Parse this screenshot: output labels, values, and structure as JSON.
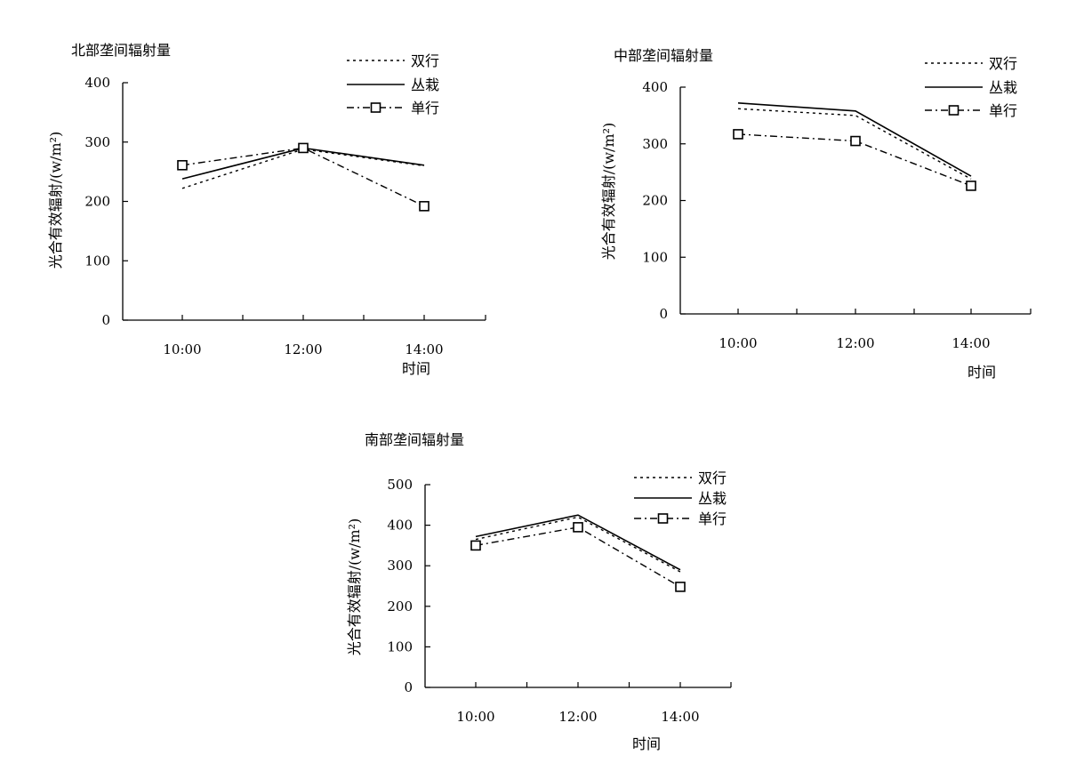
{
  "chart_data": [
    {
      "type": "line",
      "title": "北部垄间辐射量",
      "ylabel": "光合有效辐射/(w/m²)",
      "xlabel": "时间",
      "categories": [
        "10:00",
        "12:00",
        "14:00"
      ],
      "ylim": [
        0,
        400
      ],
      "yticks": [
        0,
        100,
        200,
        300,
        400
      ],
      "series": [
        {
          "name": "双行",
          "style": "dotted",
          "values": [
            222,
            288,
            260
          ]
        },
        {
          "name": "丛栽",
          "style": "solid",
          "values": [
            238,
            290,
            261
          ]
        },
        {
          "name": "单行",
          "style": "dashdot-square",
          "values": [
            261,
            290,
            192
          ]
        }
      ],
      "legend": "top-right"
    },
    {
      "type": "line",
      "title": "中部垄间辐射量",
      "ylabel": "光合有效辐射/(w/m²)",
      "xlabel": "时间",
      "categories": [
        "10:00",
        "12:00",
        "14:00"
      ],
      "ylim": [
        0,
        400
      ],
      "yticks": [
        0,
        100,
        200,
        300,
        400
      ],
      "series": [
        {
          "name": "双行",
          "style": "dotted",
          "values": [
            362,
            350,
            238
          ]
        },
        {
          "name": "丛栽",
          "style": "solid",
          "values": [
            372,
            358,
            243
          ]
        },
        {
          "name": "单行",
          "style": "dashdot-square",
          "values": [
            317,
            305,
            226
          ]
        }
      ],
      "legend": "top-right"
    },
    {
      "type": "line",
      "title": "南部垄间辐射量",
      "ylabel": "光合有效辐射/(w/m²)",
      "xlabel": "时间",
      "categories": [
        "10:00",
        "12:00",
        "14:00"
      ],
      "ylim": [
        0,
        500
      ],
      "yticks": [
        0,
        100,
        200,
        300,
        400,
        500
      ],
      "series": [
        {
          "name": "双行",
          "style": "dotted",
          "values": [
            365,
            420,
            285
          ]
        },
        {
          "name": "丛栽",
          "style": "solid",
          "values": [
            372,
            425,
            290
          ]
        },
        {
          "name": "单行",
          "style": "dashdot-square",
          "values": [
            350,
            395,
            248
          ]
        }
      ],
      "legend": "top-right"
    }
  ]
}
